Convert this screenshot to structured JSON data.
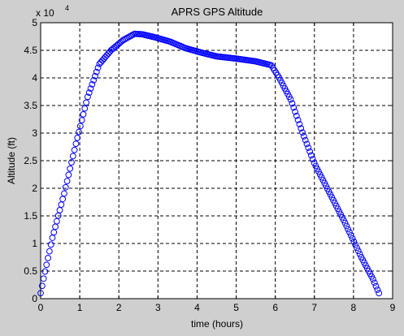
{
  "chart_data": {
    "type": "scatter",
    "title": "APRS GPS Altitude",
    "xlabel": "time (hours)",
    "ylabel": "Altitude (ft)",
    "xlim": [
      0,
      9
    ],
    "ylim": [
      0,
      50000
    ],
    "x_ticks": [
      "0",
      "1",
      "2",
      "3",
      "4",
      "5",
      "6",
      "7",
      "8",
      "9"
    ],
    "y_ticks": [
      "0",
      "0.5",
      "1",
      "1.5",
      "2",
      "2.5",
      "3",
      "3.5",
      "4",
      "4.5",
      "5"
    ],
    "y_exponent_base": "x 10",
    "y_exponent_power": "4",
    "grid": true,
    "marker": "circle",
    "color": "#0000ff",
    "series_profile": {
      "x": [
        0.0,
        0.1,
        0.3,
        0.6,
        0.9,
        1.2,
        1.5,
        1.8,
        2.1,
        2.4,
        2.6,
        2.9,
        3.3,
        3.7,
        4.1,
        4.5,
        5.0,
        5.5,
        5.9,
        6.1,
        6.4,
        6.7,
        7.0,
        7.4,
        7.8,
        8.2,
        8.5,
        8.65
      ],
      "y": [
        1000,
        4500,
        11000,
        19000,
        28000,
        36500,
        42500,
        45000,
        46800,
        48000,
        47900,
        47400,
        46600,
        45400,
        44600,
        43900,
        43500,
        43000,
        42300,
        40000,
        36000,
        30000,
        24500,
        19000,
        13500,
        7500,
        3500,
        1000
      ]
    }
  }
}
